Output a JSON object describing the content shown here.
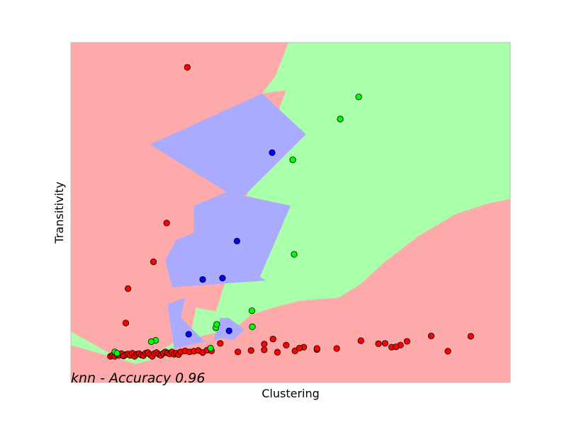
{
  "chart_data": {
    "type": "scatter",
    "title": "",
    "xlabel": "Clustering",
    "ylabel": "Transitivity",
    "annotation": "knn - Accuracy 0.96",
    "xlim": [
      0,
      1
    ],
    "ylim": [
      0,
      1
    ],
    "x_ticks_shown": false,
    "y_ticks_shown": false,
    "grid": false,
    "legend": "none",
    "region_colors": {
      "red": "#ffaaaa",
      "green": "#aaffaa",
      "blue": "#aaaaff"
    },
    "decision_regions": {
      "green": [
        [
          [
            0.495,
            1.0
          ],
          [
            1.0,
            1.0
          ],
          [
            1.0,
            0.54
          ],
          [
            0.945,
            0.525
          ],
          [
            0.875,
            0.495
          ],
          [
            0.79,
            0.43
          ],
          [
            0.71,
            0.35
          ],
          [
            0.66,
            0.29
          ],
          [
            0.61,
            0.25
          ],
          [
            0.52,
            0.24
          ],
          [
            0.46,
            0.22
          ],
          [
            0.41,
            0.2
          ],
          [
            0.37,
            0.155
          ],
          [
            0.305,
            0.14
          ],
          [
            0.235,
            0.1
          ],
          [
            0.18,
            0.065
          ],
          [
            0.145,
            0.055
          ],
          [
            0.11,
            0.07
          ],
          [
            0.0,
            0.15
          ],
          [
            0.0,
            0.11
          ],
          [
            0.095,
            0.075
          ],
          [
            0.17,
            0.075
          ],
          [
            0.225,
            0.11
          ],
          [
            0.275,
            0.16
          ],
          [
            0.285,
            0.22
          ],
          [
            0.33,
            0.21
          ],
          [
            0.355,
            0.31
          ],
          [
            0.38,
            0.31
          ],
          [
            0.395,
            0.51
          ],
          [
            0.4,
            0.55
          ],
          [
            0.49,
            0.86
          ],
          [
            0.435,
            0.85
          ],
          [
            0.465,
            0.9
          ]
        ]
      ],
      "blue": [
        [
          [
            0.435,
            0.85
          ],
          [
            0.535,
            0.73
          ],
          [
            0.395,
            0.55
          ],
          [
            0.355,
            0.56
          ],
          [
            0.18,
            0.7
          ]
        ],
        [
          [
            0.355,
            0.56
          ],
          [
            0.5,
            0.52
          ],
          [
            0.43,
            0.31
          ],
          [
            0.445,
            0.3
          ],
          [
            0.23,
            0.28
          ],
          [
            0.215,
            0.36
          ],
          [
            0.24,
            0.42
          ],
          [
            0.28,
            0.44
          ],
          [
            0.28,
            0.52
          ]
        ],
        [
          [
            0.22,
            0.23
          ],
          [
            0.26,
            0.25
          ],
          [
            0.25,
            0.19
          ],
          [
            0.305,
            0.12
          ],
          [
            0.27,
            0.11
          ],
          [
            0.235,
            0.1
          ]
        ],
        [
          [
            0.34,
            0.19
          ],
          [
            0.36,
            0.19
          ],
          [
            0.395,
            0.155
          ],
          [
            0.37,
            0.125
          ],
          [
            0.345,
            0.13
          ],
          [
            0.325,
            0.125
          ]
        ]
      ]
    },
    "series": [
      {
        "color": "#ff0000",
        "x": [
          0.265,
          0.218,
          0.188,
          0.13,
          0.125,
          0.09,
          0.095,
          0.1,
          0.105,
          0.11,
          0.115,
          0.12,
          0.125,
          0.13,
          0.135,
          0.14,
          0.145,
          0.15,
          0.155,
          0.16,
          0.165,
          0.17,
          0.175,
          0.18,
          0.185,
          0.19,
          0.195,
          0.2,
          0.205,
          0.21,
          0.215,
          0.22,
          0.225,
          0.23,
          0.235,
          0.24,
          0.245,
          0.25,
          0.26,
          0.27,
          0.28,
          0.29,
          0.3,
          0.31,
          0.32,
          0.34,
          0.38,
          0.41,
          0.44,
          0.44,
          0.46,
          0.49,
          0.47,
          0.51,
          0.53,
          0.52,
          0.56,
          0.605,
          0.56,
          0.66,
          0.7,
          0.75,
          0.765,
          0.715,
          0.73,
          0.82,
          0.858,
          0.74,
          0.91
        ],
        "y": [
          0.927,
          0.469,
          0.355,
          0.276,
          0.175,
          0.077,
          0.08,
          0.077,
          0.083,
          0.08,
          0.085,
          0.078,
          0.082,
          0.084,
          0.08,
          0.086,
          0.077,
          0.083,
          0.085,
          0.081,
          0.079,
          0.086,
          0.088,
          0.082,
          0.077,
          0.085,
          0.088,
          0.083,
          0.08,
          0.086,
          0.09,
          0.087,
          0.084,
          0.09,
          0.083,
          0.086,
          0.082,
          0.09,
          0.093,
          0.09,
          0.092,
          0.094,
          0.088,
          0.095,
          0.093,
          0.115,
          0.09,
          0.094,
          0.113,
          0.096,
          0.128,
          0.11,
          0.089,
          0.093,
          0.104,
          0.101,
          0.097,
          0.1,
          0.1,
          0.123,
          0.114,
          0.11,
          0.121,
          0.115,
          0.104,
          0.137,
          0.092,
          0.105,
          0.136
        ]
      },
      {
        "color": "#00ff00",
        "x": [
          0.655,
          0.613,
          0.505,
          0.508,
          0.412,
          0.413,
          0.33,
          0.332,
          0.193,
          0.183,
          0.318,
          0.1,
          0.105
        ],
        "y": [
          0.84,
          0.775,
          0.655,
          0.377,
          0.211,
          0.164,
          0.161,
          0.171,
          0.124,
          0.12,
          0.101,
          0.09,
          0.086
        ],
        "edge": "#000000"
      },
      {
        "color": "#0000ff",
        "x": [
          0.458,
          0.378,
          0.345,
          0.3,
          0.268,
          0.36
        ],
        "y": [
          0.676,
          0.416,
          0.307,
          0.303,
          0.142,
          0.152
        ]
      }
    ]
  }
}
